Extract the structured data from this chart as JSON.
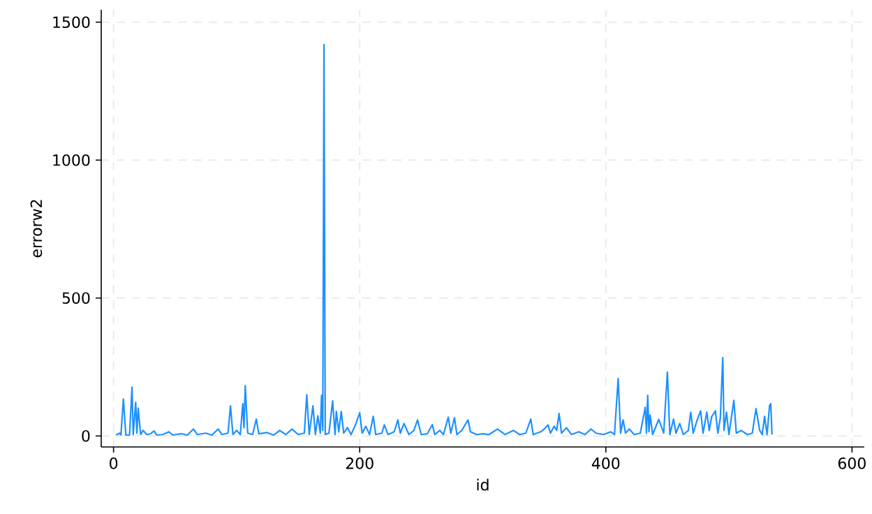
{
  "chart_data": {
    "type": "line",
    "xlabel": "id",
    "ylabel": "errorw2",
    "xlim": [
      -10,
      610
    ],
    "ylim": [
      -40,
      1545
    ],
    "xticks": [
      0,
      200,
      400,
      600
    ],
    "yticks": [
      0,
      500,
      1000,
      1500
    ],
    "grid": true,
    "line_style": "solid",
    "marker": "none",
    "series": [
      {
        "color": "#1e90ff",
        "x": [
          2,
          5,
          6,
          8,
          10,
          13,
          15,
          16,
          18,
          19,
          20,
          22,
          24,
          27,
          30,
          33,
          35,
          40,
          45,
          48,
          55,
          60,
          65,
          68,
          75,
          80,
          85,
          88,
          93,
          95,
          97,
          100,
          103,
          105,
          106,
          107,
          109,
          113,
          116,
          118,
          125,
          130,
          135,
          140,
          145,
          150,
          155,
          157,
          159,
          162,
          164,
          166,
          168,
          169,
          170,
          171,
          172,
          175,
          178,
          180,
          181,
          183,
          185,
          187,
          190,
          193,
          197,
          200,
          202,
          205,
          208,
          211,
          213,
          218,
          220,
          223,
          228,
          231,
          233,
          236,
          240,
          244,
          247,
          250,
          255,
          259,
          261,
          265,
          268,
          272,
          274,
          277,
          279,
          283,
          288,
          290,
          295,
          300,
          305,
          312,
          318,
          325,
          330,
          335,
          339,
          341,
          347,
          350,
          353,
          355,
          358,
          360,
          362,
          364,
          368,
          372,
          378,
          383,
          388,
          392,
          398,
          404,
          407,
          410,
          412,
          414,
          416,
          419,
          423,
          428,
          432,
          433,
          434,
          435,
          436,
          438,
          443,
          447,
          450,
          452,
          455,
          457,
          460,
          463,
          467,
          469,
          471,
          474,
          477,
          479,
          482,
          484,
          486,
          489,
          491,
          493,
          495,
          496,
          498,
          500,
          504,
          506,
          510,
          515,
          519,
          522,
          525,
          527,
          529,
          531,
          533,
          534,
          535
        ],
        "values": [
          3,
          10,
          4,
          134,
          3,
          3,
          177,
          5,
          122,
          10,
          101,
          5,
          20,
          5,
          8,
          18,
          3,
          5,
          15,
          3,
          8,
          3,
          25,
          5,
          10,
          3,
          25,
          5,
          10,
          109,
          5,
          20,
          5,
          117,
          30,
          182,
          10,
          5,
          61,
          8,
          12,
          3,
          20,
          5,
          25,
          5,
          10,
          149,
          5,
          109,
          5,
          73,
          10,
          147,
          20,
          1419,
          5,
          10,
          127,
          5,
          89,
          15,
          89,
          10,
          30,
          5,
          45,
          84,
          10,
          35,
          5,
          71,
          5,
          10,
          40,
          5,
          15,
          58,
          10,
          45,
          5,
          20,
          58,
          5,
          8,
          41,
          5,
          20,
          5,
          68,
          10,
          66,
          5,
          20,
          58,
          15,
          5,
          8,
          5,
          25,
          5,
          20,
          5,
          10,
          61,
          5,
          15,
          25,
          40,
          10,
          35,
          20,
          81,
          10,
          30,
          5,
          15,
          5,
          25,
          10,
          5,
          15,
          5,
          208,
          10,
          58,
          10,
          25,
          5,
          10,
          104,
          10,
          147,
          15,
          76,
          5,
          60,
          10,
          231,
          5,
          61,
          10,
          45,
          5,
          20,
          86,
          10,
          55,
          91,
          10,
          86,
          20,
          70,
          91,
          10,
          65,
          284,
          20,
          86,
          5,
          129,
          10,
          20,
          5,
          10,
          99,
          20,
          5,
          71,
          5,
          110,
          117,
          5
        ]
      }
    ]
  }
}
